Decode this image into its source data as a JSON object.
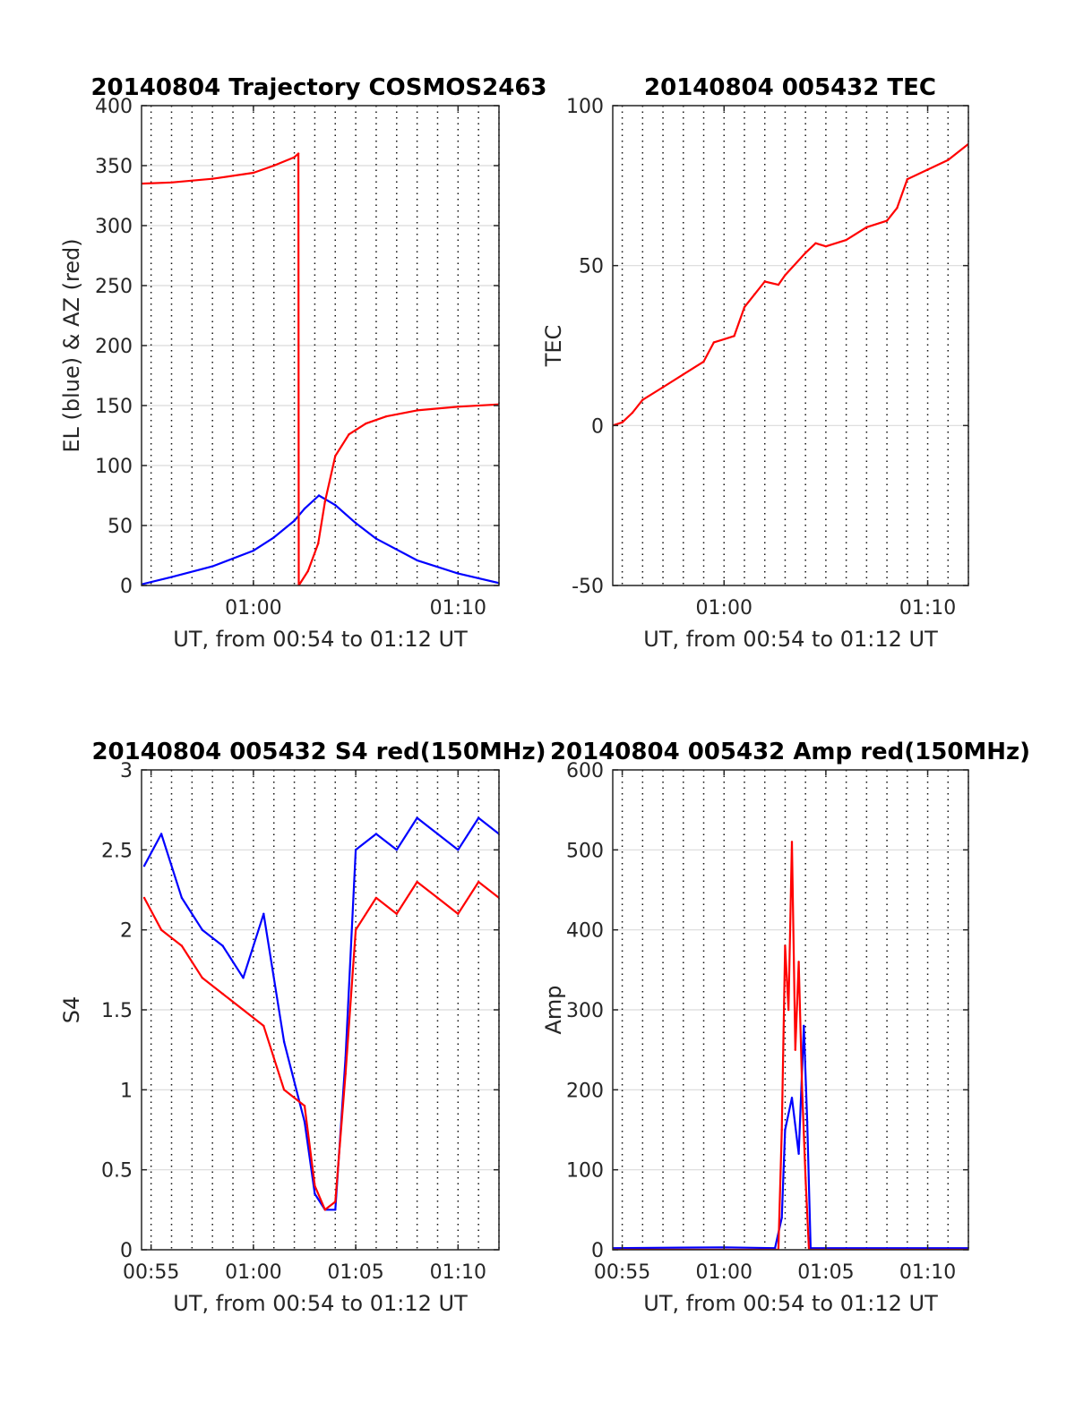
{
  "figure": {
    "background": "#ffffff",
    "colors": {
      "red": "#ff0000",
      "blue": "#0000ff",
      "grid": "#d9d9d9",
      "axes": "#262626"
    }
  },
  "chart_data": [
    {
      "type": "line",
      "title": "20140804 Trajectory COSMOS2463",
      "xlabel": "UT, from 00:54 to 01:12 UT",
      "ylabel": "EL (blue) & AZ (red)",
      "xlim": [
        "00:54:32",
        "01:12:00"
      ],
      "ylim": [
        0,
        400
      ],
      "yticks": [
        0,
        50,
        100,
        150,
        200,
        250,
        300,
        350,
        400
      ],
      "xtick_labels": [
        "01:00",
        "01:10"
      ],
      "grid": "on",
      "series": [
        {
          "color": "#0000ff",
          "x": [
            "00:54:32",
            "00:56:00",
            "00:58:00",
            "01:00:00",
            "01:01:00",
            "01:02:00",
            "01:02:30",
            "01:03:12",
            "01:04:00",
            "01:05:00",
            "01:06:00",
            "01:08:00",
            "01:10:00",
            "01:12:00"
          ],
          "values": [
            1,
            7,
            16,
            29,
            40,
            54,
            64,
            75,
            67,
            52,
            39,
            21,
            10,
            2
          ]
        },
        {
          "color": "#ff0000",
          "x": [
            "00:54:32",
            "00:56:00",
            "00:58:00",
            "01:00:00",
            "01:01:00",
            "01:02:00",
            "01:02:12",
            "01:02:13",
            "01:02:40",
            "01:03:10",
            "01:03:30",
            "01:04:00",
            "01:04:40",
            "01:05:30",
            "01:06:30",
            "01:08:00",
            "01:10:00",
            "01:12:00"
          ],
          "values": [
            335,
            336,
            339,
            344,
            350,
            357,
            360,
            0,
            12,
            35,
            70,
            108,
            126,
            135,
            141,
            146,
            149,
            151
          ]
        }
      ]
    },
    {
      "type": "line",
      "title": "20140804 005432 TEC",
      "xlabel": "UT, from 00:54 to 01:12 UT",
      "ylabel": "TEC",
      "xlim": [
        "00:54:32",
        "01:12:00"
      ],
      "ylim": [
        -50,
        100
      ],
      "yticks": [
        -50,
        0,
        50,
        100
      ],
      "xtick_labels": [
        "01:00",
        "01:10"
      ],
      "grid": "on",
      "series": [
        {
          "color": "#ff0000",
          "x": [
            "00:54:32",
            "00:55:00",
            "00:55:30",
            "00:56:00",
            "00:57:00",
            "00:58:00",
            "00:59:00",
            "00:59:30",
            "01:00:00",
            "01:00:30",
            "01:01:00",
            "01:01:30",
            "01:02:00",
            "01:02:40",
            "01:03:00",
            "01:04:00",
            "01:04:30",
            "01:05:00",
            "01:06:00",
            "01:07:00",
            "01:08:00",
            "01:08:30",
            "01:09:00",
            "01:10:00",
            "01:11:00",
            "01:12:00"
          ],
          "values": [
            0,
            1,
            4,
            8,
            12,
            16,
            20,
            26,
            27,
            28,
            37,
            41,
            45,
            44,
            47,
            54,
            57,
            56,
            58,
            62,
            64,
            68,
            77,
            80,
            83,
            88
          ]
        }
      ]
    },
    {
      "type": "line",
      "title": "20140804 005432 S4 red(150MHz)",
      "xlabel": "UT, from 00:54 to 01:12 UT",
      "ylabel": "S4",
      "xlim": [
        "00:54:32",
        "01:12:00"
      ],
      "ylim": [
        0,
        3
      ],
      "yticks": [
        0,
        0.5,
        1,
        1.5,
        2,
        2.5,
        3
      ],
      "xtick_labels": [
        "00:55",
        "01:00",
        "01:05",
        "01:10"
      ],
      "grid": "on",
      "series": [
        {
          "color": "#0000ff",
          "x": [
            "00:54:40",
            "00:55:30",
            "00:56:30",
            "00:57:30",
            "00:58:30",
            "00:59:30",
            "01:00:30",
            "01:01:30",
            "01:02:30",
            "01:03:00",
            "01:03:30",
            "01:04:00",
            "01:04:30",
            "01:05:00",
            "01:06:00",
            "01:07:00",
            "01:08:00",
            "01:09:00",
            "01:10:00",
            "01:11:00",
            "01:12:00"
          ],
          "values": [
            2.4,
            2.6,
            2.2,
            2.0,
            1.9,
            1.7,
            2.1,
            1.3,
            0.8,
            0.35,
            0.25,
            0.25,
            1.2,
            2.5,
            2.6,
            2.5,
            2.7,
            2.6,
            2.5,
            2.7,
            2.6
          ]
        },
        {
          "color": "#ff0000",
          "x": [
            "00:54:40",
            "00:55:30",
            "00:56:30",
            "00:57:30",
            "00:58:30",
            "00:59:30",
            "01:00:30",
            "01:01:30",
            "01:02:30",
            "01:03:00",
            "01:03:30",
            "01:04:00",
            "01:04:30",
            "01:05:00",
            "01:06:00",
            "01:07:00",
            "01:08:00",
            "01:09:00",
            "01:10:00",
            "01:11:00",
            "01:12:00"
          ],
          "values": [
            2.2,
            2.0,
            1.9,
            1.7,
            1.6,
            1.5,
            1.4,
            1.0,
            0.9,
            0.4,
            0.25,
            0.3,
            1.1,
            2.0,
            2.2,
            2.1,
            2.3,
            2.2,
            2.1,
            2.3,
            2.2
          ]
        }
      ]
    },
    {
      "type": "line",
      "title": "20140804 005432 Amp red(150MHz)",
      "xlabel": "UT, from 00:54 to 01:12 UT",
      "ylabel": "Amp",
      "xlim": [
        "00:54:32",
        "01:12:00"
      ],
      "ylim": [
        0,
        600
      ],
      "yticks": [
        0,
        100,
        200,
        300,
        400,
        500,
        600
      ],
      "xtick_labels": [
        "00:55",
        "01:00",
        "01:05",
        "01:10"
      ],
      "grid": "on",
      "series": [
        {
          "color": "#0000ff",
          "x": [
            "00:54:32",
            "01:00:00",
            "01:02:30",
            "01:02:50",
            "01:03:00",
            "01:03:20",
            "01:03:40",
            "01:03:55",
            "01:04:05",
            "01:04:15",
            "01:05:00",
            "01:12:00"
          ],
          "values": [
            2,
            3,
            2,
            40,
            150,
            190,
            120,
            280,
            160,
            2,
            2,
            2
          ]
        },
        {
          "color": "#ff0000",
          "x": [
            "00:54:32",
            "01:02:40",
            "01:02:50",
            "01:03:00",
            "01:03:10",
            "01:03:20",
            "01:03:30",
            "01:03:40",
            "01:03:50",
            "01:04:00",
            "01:04:10",
            "01:12:00"
          ],
          "values": [
            0,
            0,
            150,
            380,
            300,
            510,
            250,
            360,
            200,
            90,
            0,
            0
          ]
        }
      ]
    }
  ]
}
